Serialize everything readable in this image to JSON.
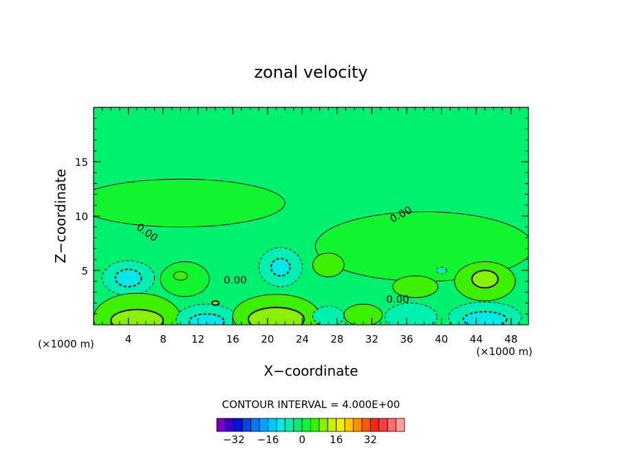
{
  "chart_data": {
    "type": "contour",
    "title": "zonal velocity",
    "xlabel": "X−coordinate",
    "ylabel": "Z−coordinate",
    "x_unit": "(×1000 m)",
    "y_unit": "(×1000 m)",
    "xlim": [
      0,
      50
    ],
    "ylim": [
      0,
      20
    ],
    "x_ticks": [
      4,
      8,
      12,
      16,
      20,
      24,
      28,
      32,
      36,
      40,
      44,
      48
    ],
    "x_tick_labels": [
      "4",
      "8",
      "12",
      "16",
      "20",
      "24",
      "28",
      "32",
      "36",
      "40",
      "44",
      "48"
    ],
    "y_ticks": [
      5,
      10,
      15
    ],
    "y_tick_labels": [
      "5",
      "10",
      "15"
    ],
    "contour_interval_text": "CONTOUR INTERVAL = 4.000E+00",
    "contour_labels": [
      "0.00",
      "0.00",
      "0.00",
      "0.00"
    ],
    "background_value": -2,
    "features": [
      {
        "kind": "pos",
        "cx": 10,
        "cy": 11.2,
        "rx": 12,
        "ry": 2.2,
        "value": 2
      },
      {
        "kind": "pos",
        "cx": 38,
        "cy": 7.2,
        "rx": 12.5,
        "ry": 3.2,
        "value": 2
      },
      {
        "kind": "neg",
        "cx": 4,
        "cy": 4.3,
        "rx": 3,
        "ry": 1.6,
        "value": -8
      },
      {
        "kind": "neg",
        "cx": 4,
        "cy": 4.3,
        "rx": 1.5,
        "ry": 0.8,
        "value": -12
      },
      {
        "kind": "pos",
        "cx": 10.5,
        "cy": 4.2,
        "rx": 2.8,
        "ry": 1.6,
        "value": 2
      },
      {
        "kind": "pos",
        "cx": 10,
        "cy": 4.5,
        "rx": 0.8,
        "ry": 0.4,
        "value": 6
      },
      {
        "kind": "neg",
        "cx": 21.5,
        "cy": 5.3,
        "rx": 2.5,
        "ry": 1.8,
        "value": -6
      },
      {
        "kind": "neg",
        "cx": 21.5,
        "cy": 5.3,
        "rx": 1.1,
        "ry": 0.8,
        "value": -10
      },
      {
        "kind": "pos",
        "cx": 27,
        "cy": 5.5,
        "rx": 1.8,
        "ry": 1.1,
        "value": 6
      },
      {
        "kind": "pos",
        "cx": 37,
        "cy": 3.5,
        "rx": 2.6,
        "ry": 1.0,
        "value": 6
      },
      {
        "kind": "neg",
        "cx": 40,
        "cy": 5,
        "rx": 0.6,
        "ry": 0.3,
        "value": -6
      },
      {
        "kind": "pos",
        "cx": 45,
        "cy": 4,
        "rx": 3.5,
        "ry": 1.8,
        "value": 6
      },
      {
        "kind": "pos",
        "cx": 45,
        "cy": 4.2,
        "rx": 1.5,
        "ry": 0.8,
        "value": 10
      },
      {
        "kind": "pos",
        "cx": 5,
        "cy": 0.6,
        "rx": 5,
        "ry": 2.3,
        "value": 6
      },
      {
        "kind": "pos",
        "cx": 5,
        "cy": 0.4,
        "rx": 3,
        "ry": 1.0,
        "value": 10
      },
      {
        "kind": "neg",
        "cx": 13,
        "cy": 0.5,
        "rx": 3.5,
        "ry": 1.4,
        "value": -6
      },
      {
        "kind": "neg",
        "cx": 13,
        "cy": 0.3,
        "rx": 2.0,
        "ry": 0.7,
        "value": -10
      },
      {
        "kind": "pos",
        "cx": 21,
        "cy": 0.8,
        "rx": 5,
        "ry": 2.0,
        "value": 6
      },
      {
        "kind": "pos",
        "cx": 21,
        "cy": 0.5,
        "rx": 3.2,
        "ry": 1.1,
        "value": 10
      },
      {
        "kind": "neg",
        "cx": 27,
        "cy": 0.8,
        "rx": 1.8,
        "ry": 0.9,
        "value": -6
      },
      {
        "kind": "pos",
        "cx": 31,
        "cy": 0.9,
        "rx": 2.2,
        "ry": 1.0,
        "value": 6
      },
      {
        "kind": "neg",
        "cx": 36.5,
        "cy": 0.7,
        "rx": 3,
        "ry": 1.3,
        "value": -6
      },
      {
        "kind": "neg",
        "cx": 45,
        "cy": 0.7,
        "rx": 4.2,
        "ry": 1.4,
        "value": -8
      },
      {
        "kind": "neg",
        "cx": 45,
        "cy": 0.5,
        "rx": 2.5,
        "ry": 0.7,
        "value": -12
      },
      {
        "kind": "pos",
        "cx": 14,
        "cy": 2.0,
        "rx": 0.4,
        "ry": 0.2,
        "value": 10
      }
    ],
    "colorbar": {
      "colors": [
        "#7a00c0",
        "#3a00c8",
        "#0014d8",
        "#0046ee",
        "#0078ff",
        "#00a2ff",
        "#00c8ff",
        "#00e8e8",
        "#00f0b0",
        "#00f070",
        "#10f530",
        "#3cf000",
        "#88f000",
        "#c8f000",
        "#f0f000",
        "#ffc800",
        "#ff9000",
        "#ff5a00",
        "#ff2800",
        "#ff3c3c",
        "#ff6c6c",
        "#ff9c9c"
      ],
      "tick_values": [
        -32,
        -16,
        0,
        16,
        32
      ],
      "tick_labels": [
        "−32",
        "−16",
        "0",
        "16",
        "32"
      ],
      "min": -40,
      "max": 48
    }
  }
}
